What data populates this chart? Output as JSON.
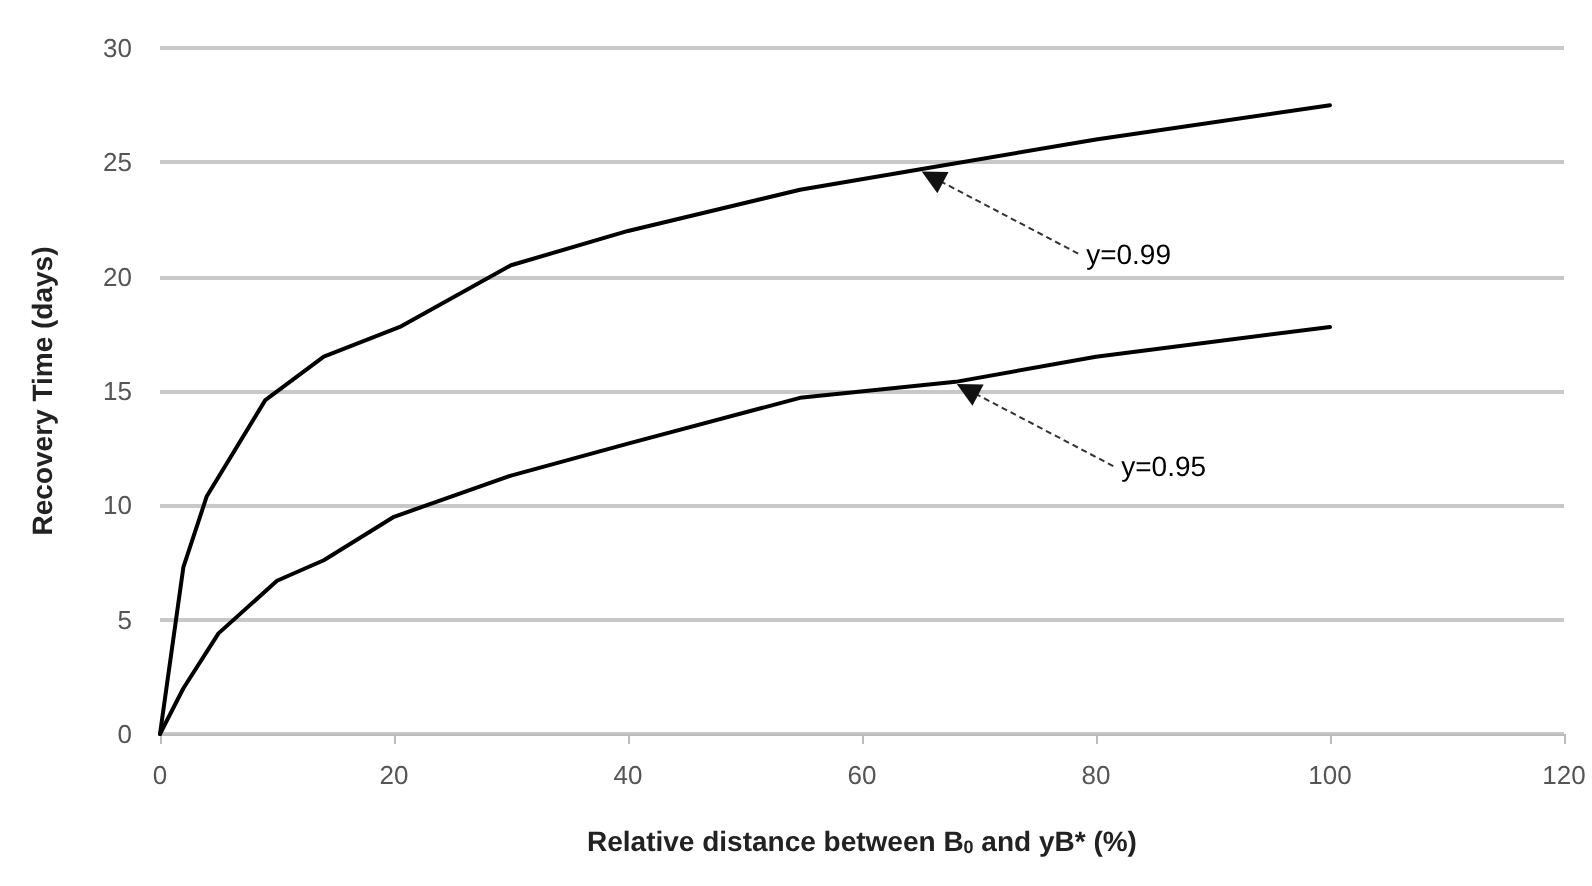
{
  "chart_data": {
    "type": "line",
    "xlabel": "Relative distance between B$_{0}$ and yB* (%)",
    "ylabel": "Recovery Time (days)",
    "xlim": [
      0,
      120
    ],
    "xticks": [
      0,
      20,
      40,
      60,
      80,
      100,
      120
    ],
    "ylim": [
      0,
      30
    ],
    "yticks": [
      0,
      5,
      10,
      15,
      20,
      25,
      30
    ],
    "grid": "y",
    "marker": "none",
    "line_style": "solid",
    "series": [
      {
        "color": "#000000",
        "x": [
          0,
          2,
          4,
          9,
          14,
          20.5,
          30,
          40,
          54.7,
          65,
          80,
          100
        ],
        "values": [
          0,
          7.3,
          10.4,
          14.6,
          16.5,
          17.8,
          20.5,
          22,
          23.8,
          24.7,
          26,
          27.5
        ]
      },
      {
        "color": "#000000",
        "x": [
          0,
          2,
          5,
          10,
          14,
          20,
          30,
          40,
          54.7,
          68,
          80,
          100
        ],
        "values": [
          0,
          2,
          4.4,
          6.7,
          7.6,
          9.5,
          11.3,
          12.7,
          14.7,
          15.4,
          16.5,
          17.8
        ]
      }
    ],
    "annotations": [
      "y=0.99",
      "y=0.95"
    ]
  }
}
